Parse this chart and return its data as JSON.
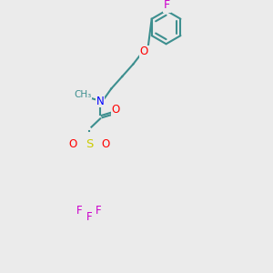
{
  "bg_color": "#ebebeb",
  "bond_color": "#3d8f8f",
  "atom_colors": {
    "N": "#0000ff",
    "O": "#ff0000",
    "F": "#cc00cc",
    "S": "#cccc00"
  },
  "line_width": 1.5,
  "font_size": 8.5
}
